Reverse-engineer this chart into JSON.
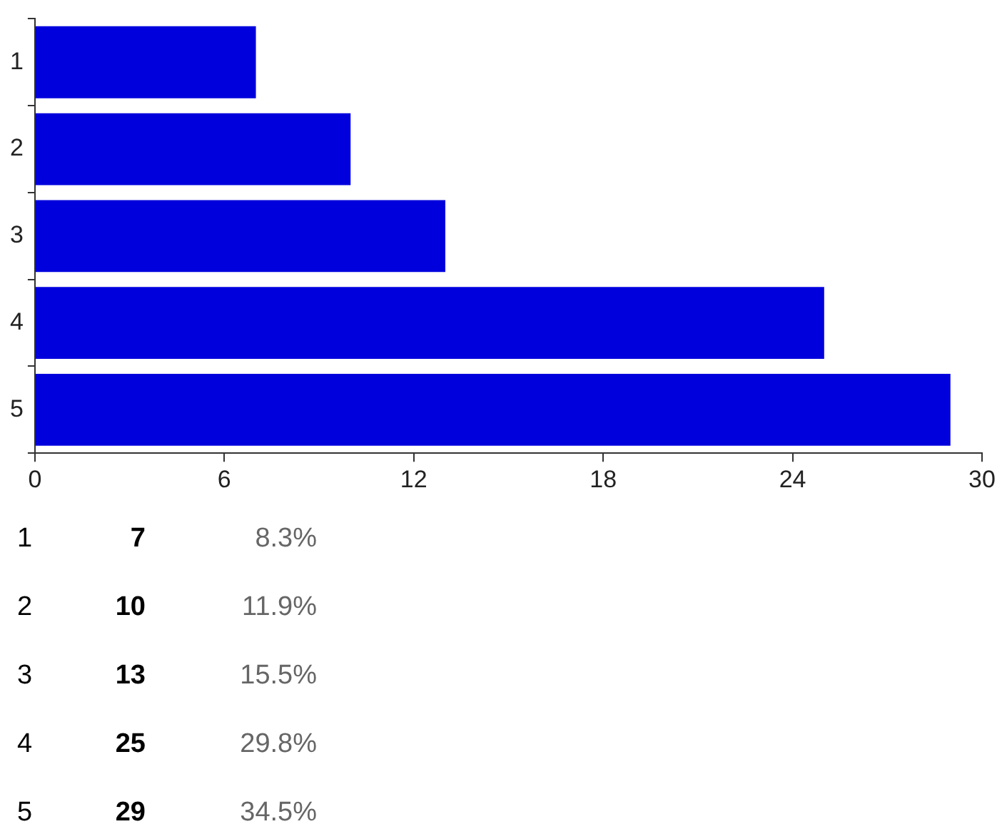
{
  "chart_data": {
    "type": "bar",
    "orientation": "horizontal",
    "categories": [
      "1",
      "2",
      "3",
      "4",
      "5"
    ],
    "values": [
      7,
      10,
      13,
      25,
      29
    ],
    "color": "#0000dd",
    "xlim": [
      0,
      30
    ],
    "xticks": [
      0,
      6,
      12,
      18,
      24,
      30
    ],
    "grid": false,
    "legend": false,
    "annotations": [
      "7",
      "8.3%",
      "10",
      "11.9%",
      "13",
      "15.5%",
      "25",
      "29.8%",
      "29",
      "34.5%"
    ]
  }
}
